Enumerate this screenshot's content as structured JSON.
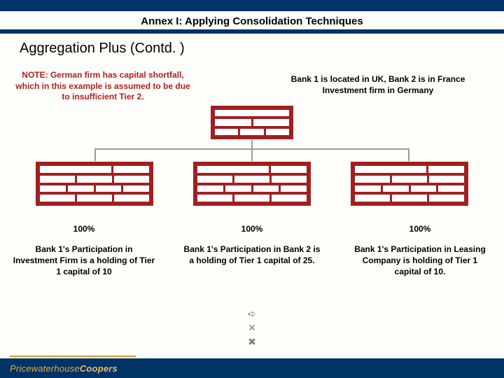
{
  "colors": {
    "navy": "#003366",
    "maroon": "#a02020",
    "note_red": "#b02020",
    "gold": "#cc9933",
    "logo_orange": "#e9a63a",
    "connector": "#999999",
    "background": "#fdfdf9"
  },
  "header": {
    "title": "Annex I: Applying Consolidation Techniques",
    "subtitle": "Aggregation Plus (Contd. )"
  },
  "note": "NOTE:  German firm has capital shortfall, which in this example is assumed to be due to insufficient Tier 2.",
  "bank_location": {
    "line1": "Bank 1 is located in UK, Bank 2 is in France",
    "line2": "Investment firm in Germany"
  },
  "org_chart": {
    "type": "tree",
    "parent": {
      "label": ""
    },
    "children": [
      {
        "percent": "100%",
        "desc": "Bank 1's Participation in Investment Firm is a holding of Tier 1 capital of 10"
      },
      {
        "percent": "100%",
        "desc": "Bank 1's Participation in Bank 2 is a holding of Tier 1 capital of 25."
      },
      {
        "percent": "100%",
        "desc": "Bank 1's Participation in Leasing Company is holding of Tier 1 capital of 10."
      }
    ]
  },
  "icons": {
    "arrow": "➪",
    "close": "✕",
    "star": "✖"
  },
  "footer": {
    "logo_left": "Pricewaterhouse",
    "logo_right": "Coopers"
  }
}
